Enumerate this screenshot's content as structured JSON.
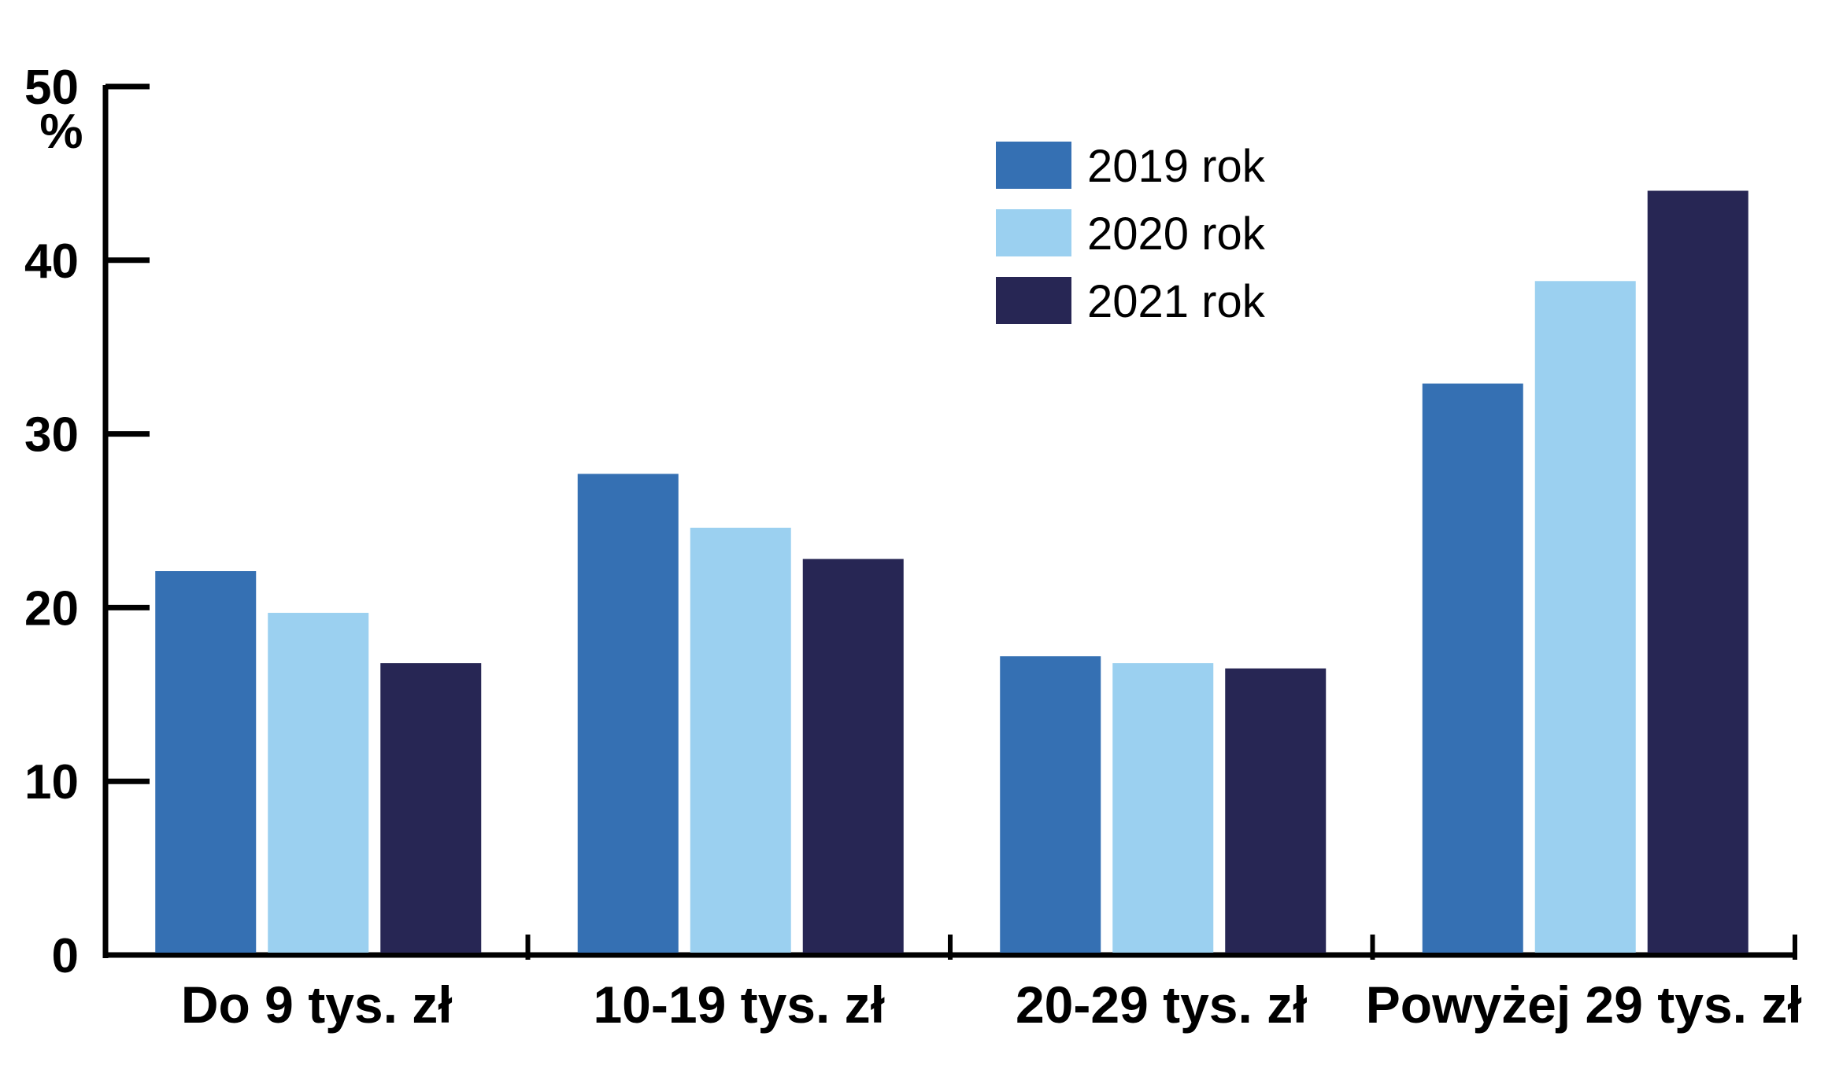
{
  "chart_data": {
    "type": "bar",
    "title": "",
    "xlabel": "",
    "ylabel": "",
    "y_unit": "%",
    "ylim": [
      0,
      50
    ],
    "yticks": [
      0,
      10,
      20,
      30,
      40,
      50
    ],
    "grid": false,
    "legend_position": "top-center",
    "categories": [
      "Do 9 tys. zł",
      "10-19 tys. zł",
      "20-29 tys. zł",
      "Powyżej 29 tys. zł"
    ],
    "series": [
      {
        "name": "2019 rok",
        "color": "#3570b3",
        "values": [
          22.1,
          27.7,
          17.2,
          32.9
        ]
      },
      {
        "name": "2020 rok",
        "color": "#9bd0f0",
        "values": [
          19.7,
          24.6,
          16.8,
          38.8
        ]
      },
      {
        "name": "2021 rok",
        "color": "#272654",
        "values": [
          16.8,
          22.8,
          16.5,
          44.0
        ]
      }
    ]
  }
}
